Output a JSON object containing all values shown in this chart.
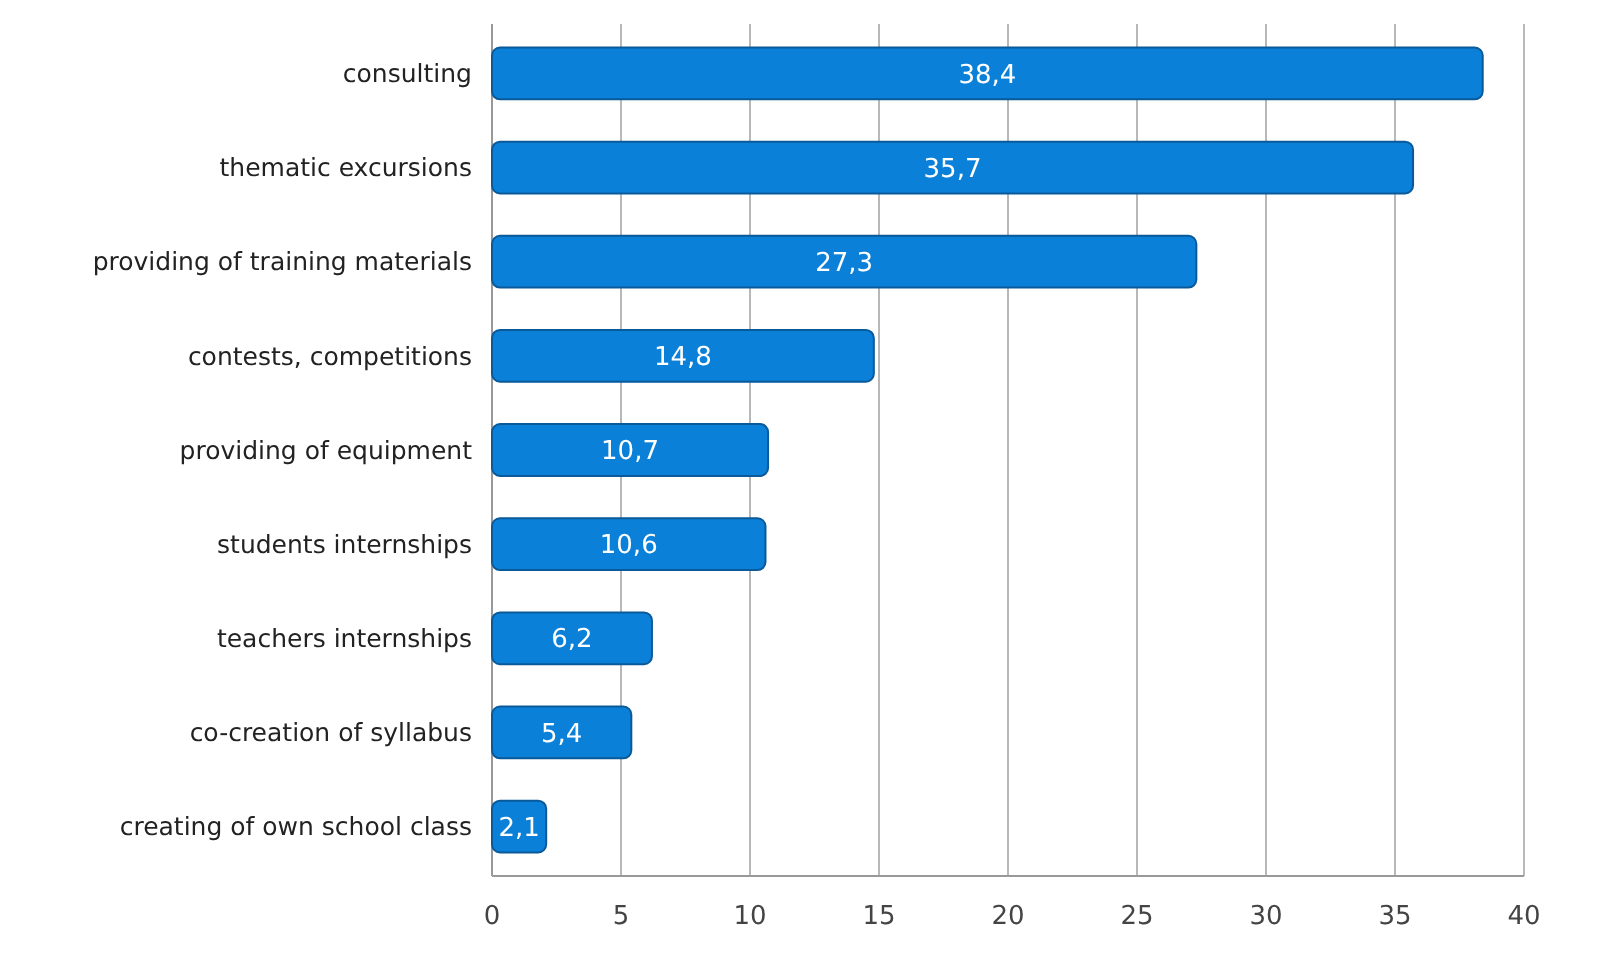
{
  "chart_data": {
    "type": "bar",
    "orientation": "horizontal",
    "categories": [
      "consulting",
      "thematic excursions",
      "providing of training materials",
      "contests, competitions",
      "providing of equipment",
      "students internships",
      "teachers internships",
      "co-creation of syllabus",
      "creating of own school class"
    ],
    "values": [
      38.4,
      35.7,
      27.3,
      14.8,
      10.7,
      10.6,
      6.2,
      5.4,
      2.1
    ],
    "value_labels": [
      "38,4",
      "35,7",
      "27,3",
      "14,8",
      "10,7",
      "10,6",
      "6,2",
      "5,4",
      "2,1"
    ],
    "color": "#0b80d8",
    "xlim": [
      0,
      40
    ],
    "xticks": [
      0,
      5,
      10,
      15,
      20,
      25,
      30,
      35,
      40
    ],
    "grid": "x"
  }
}
